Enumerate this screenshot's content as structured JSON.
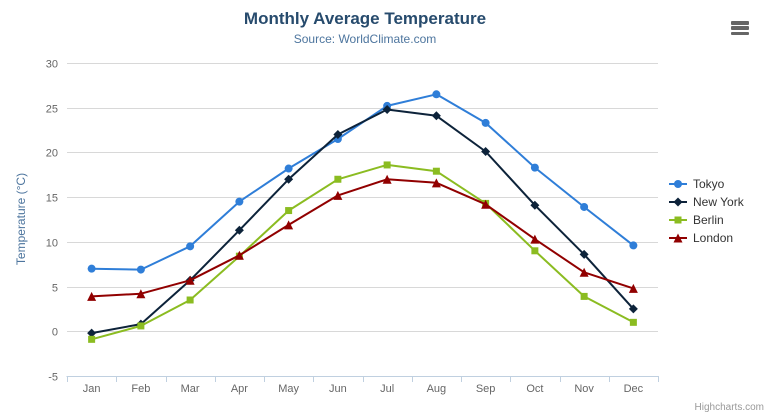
{
  "header": {
    "title": "Monthly Average Temperature",
    "subtitle": "Source: WorldClimate.com"
  },
  "icons": {
    "menu": "hamburger-icon"
  },
  "credits_label": "Highcharts.com",
  "colors": {
    "title": "#274b6d",
    "subtitle": "#4d759e",
    "axis_title": "#4d759e",
    "tick_label": "#666666",
    "grid": "#d8d8d8",
    "axis_line": "#c0d0e0",
    "legend_text": "#333333",
    "credits": "#999999"
  },
  "chart_data": {
    "type": "line",
    "title": "Monthly Average Temperature",
    "subtitle": "Source: WorldClimate.com",
    "xlabel": "",
    "ylabel": "Temperature (°C)",
    "categories": [
      "Jan",
      "Feb",
      "Mar",
      "Apr",
      "May",
      "Jun",
      "Jul",
      "Aug",
      "Sep",
      "Oct",
      "Nov",
      "Dec"
    ],
    "ylim": [
      -5,
      30
    ],
    "ytick_step": 5,
    "yticks": [
      -5,
      0,
      5,
      10,
      15,
      20,
      25,
      30
    ],
    "grid": true,
    "legend_position": "right",
    "series": [
      {
        "name": "Tokyo",
        "color": "#2f7ed8",
        "marker": "circle",
        "values": [
          7.0,
          6.9,
          9.5,
          14.5,
          18.2,
          21.5,
          25.2,
          26.5,
          23.3,
          18.3,
          13.9,
          9.6
        ]
      },
      {
        "name": "New York",
        "color": "#0d233a",
        "marker": "diamond",
        "values": [
          -0.2,
          0.8,
          5.7,
          11.3,
          17.0,
          22.0,
          24.8,
          24.1,
          20.1,
          14.1,
          8.6,
          2.5
        ]
      },
      {
        "name": "Berlin",
        "color": "#8bbc21",
        "marker": "square",
        "values": [
          -0.9,
          0.6,
          3.5,
          8.4,
          13.5,
          17.0,
          18.6,
          17.9,
          14.3,
          9.0,
          3.9,
          1.0
        ]
      },
      {
        "name": "London",
        "color": "#910000",
        "marker": "triangle",
        "values": [
          3.9,
          4.2,
          5.7,
          8.5,
          11.9,
          15.2,
          17.0,
          16.6,
          14.2,
          10.3,
          6.6,
          4.8
        ]
      }
    ]
  }
}
